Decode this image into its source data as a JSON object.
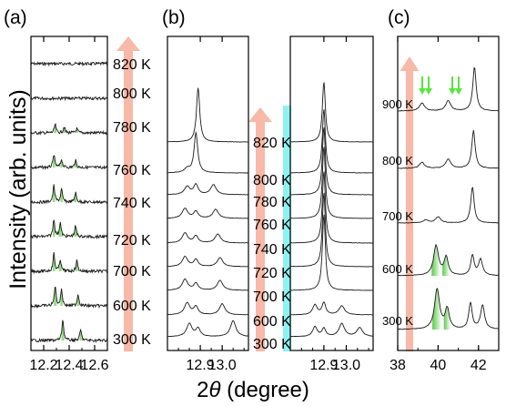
{
  "figure": {
    "ylabel": "Intensity (arb. units)",
    "xlabel_prefix": "2",
    "xlabel_theta": "θ",
    "xlabel_suffix": " (degree)"
  },
  "colors": {
    "arrow": "#f7b9a8",
    "cyan_bar": "#8ef2f2",
    "green_fill": "#7ed66a",
    "green_arrow": "#55e63c",
    "trace": "#1a1a1a"
  },
  "chart_data": [
    {
      "panel": "(a)",
      "type": "line",
      "xlim": [
        12.1,
        12.7
      ],
      "xticks": [
        12.2,
        12.4,
        12.6
      ],
      "tick_labels": [
        "12.2",
        "12.4",
        "12.6"
      ],
      "series": [
        {
          "name": "820 K",
          "peaks": []
        },
        {
          "name": "800 K",
          "peaks": []
        },
        {
          "name": "780 K",
          "peaks": [
            {
              "x": 12.29,
              "h": 0.35
            },
            {
              "x": 12.36,
              "h": 0.25
            },
            {
              "x": 12.46,
              "h": 0.18
            }
          ]
        },
        {
          "name": "760 K",
          "peaks": [
            {
              "x": 12.28,
              "h": 0.55
            },
            {
              "x": 12.34,
              "h": 0.35
            },
            {
              "x": 12.45,
              "h": 0.3
            }
          ]
        },
        {
          "name": "740 K",
          "peaks": [
            {
              "x": 12.28,
              "h": 0.7
            },
            {
              "x": 12.34,
              "h": 0.55
            },
            {
              "x": 12.45,
              "h": 0.4
            }
          ]
        },
        {
          "name": "720 K",
          "peaks": [
            {
              "x": 12.28,
              "h": 0.75
            },
            {
              "x": 12.33,
              "h": 0.6
            },
            {
              "x": 12.45,
              "h": 0.45
            }
          ]
        },
        {
          "name": "700 K",
          "peaks": [
            {
              "x": 12.28,
              "h": 0.75
            },
            {
              "x": 12.33,
              "h": 0.5
            },
            {
              "x": 12.46,
              "h": 0.45
            }
          ]
        },
        {
          "name": "600 K",
          "peaks": [
            {
              "x": 12.29,
              "h": 0.85
            },
            {
              "x": 12.34,
              "h": 0.7
            },
            {
              "x": 12.47,
              "h": 0.5
            }
          ]
        },
        {
          "name": "300 K",
          "peaks": [
            {
              "x": 12.35,
              "h": 0.9
            },
            {
              "x": 12.49,
              "h": 0.45
            }
          ]
        }
      ]
    },
    {
      "panel": "(b)",
      "type": "line",
      "xlim": [
        12.75,
        13.12
      ],
      "xticks": [
        12.9,
        13.0
      ],
      "tick_labels": [
        "12.9",
        "13.0"
      ],
      "series": [
        {
          "name": "820 K",
          "peaks": [
            {
              "x": 12.89,
              "h": 2.7,
              "w": 0.009
            }
          ]
        },
        {
          "name": "800 K",
          "peaks": [
            {
              "x": 12.88,
              "h": 2.0,
              "w": 0.01
            },
            {
              "x": 12.84,
              "h": 0.2,
              "w": 0.015
            }
          ]
        },
        {
          "name": "780 K",
          "peaks": [
            {
              "x": 12.84,
              "h": 0.4,
              "w": 0.015
            },
            {
              "x": 12.88,
              "h": 0.5,
              "w": 0.012
            },
            {
              "x": 12.96,
              "h": 0.5,
              "w": 0.015
            }
          ]
        },
        {
          "name": "760 K",
          "peaks": [
            {
              "x": 12.83,
              "h": 0.5,
              "w": 0.015
            },
            {
              "x": 12.88,
              "h": 0.35,
              "w": 0.012
            },
            {
              "x": 12.97,
              "h": 0.45,
              "w": 0.015
            }
          ]
        },
        {
          "name": "740 K",
          "peaks": [
            {
              "x": 12.83,
              "h": 0.5,
              "w": 0.015
            },
            {
              "x": 12.88,
              "h": 0.35,
              "w": 0.012
            },
            {
              "x": 12.98,
              "h": 0.45,
              "w": 0.015
            }
          ]
        },
        {
          "name": "720 K",
          "peaks": [
            {
              "x": 12.83,
              "h": 0.5,
              "w": 0.015
            },
            {
              "x": 12.88,
              "h": 0.35,
              "w": 0.012
            },
            {
              "x": 12.99,
              "h": 0.45,
              "w": 0.015
            }
          ]
        },
        {
          "name": "700 K",
          "peaks": [
            {
              "x": 12.83,
              "h": 0.55,
              "w": 0.015
            },
            {
              "x": 12.88,
              "h": 0.35,
              "w": 0.012
            },
            {
              "x": 12.99,
              "h": 0.5,
              "w": 0.015
            }
          ]
        },
        {
          "name": "600 K",
          "peaks": [
            {
              "x": 12.84,
              "h": 0.6,
              "w": 0.015
            },
            {
              "x": 12.88,
              "h": 0.4,
              "w": 0.012
            },
            {
              "x": 13.0,
              "h": 0.55,
              "w": 0.015
            }
          ]
        },
        {
          "name": "300 K",
          "peaks": [
            {
              "x": 12.85,
              "h": 0.65,
              "w": 0.015
            },
            {
              "x": 12.89,
              "h": 0.4,
              "w": 0.012
            },
            {
              "x": 13.05,
              "h": 0.8,
              "w": 0.015
            }
          ]
        }
      ]
    },
    {
      "panel": "(b-right)",
      "type": "line",
      "xlim": [
        12.75,
        13.12
      ],
      "xticks": [
        12.9,
        13.0
      ],
      "tick_labels": [
        "12.9",
        "13.0"
      ],
      "series": [
        {
          "name": "820 K",
          "peaks": [
            {
              "x": 12.9,
              "h": 3.0,
              "w": 0.008
            }
          ]
        },
        {
          "name": "800 K",
          "peaks": [
            {
              "x": 12.9,
              "h": 3.2,
              "w": 0.008
            }
          ]
        },
        {
          "name": "780 K",
          "peaks": [
            {
              "x": 12.9,
              "h": 3.4,
              "w": 0.008
            }
          ]
        },
        {
          "name": "760 K",
          "peaks": [
            {
              "x": 12.9,
              "h": 3.6,
              "w": 0.008
            }
          ]
        },
        {
          "name": "740 K",
          "peaks": [
            {
              "x": 12.9,
              "h": 3.6,
              "w": 0.008
            }
          ]
        },
        {
          "name": "720 K",
          "peaks": [
            {
              "x": 12.9,
              "h": 3.7,
              "w": 0.008
            }
          ]
        },
        {
          "name": "700 K",
          "peaks": [
            {
              "x": 12.9,
              "h": 3.8,
              "w": 0.008
            }
          ]
        },
        {
          "name": "600 K",
          "peaks": [
            {
              "x": 12.86,
              "h": 0.5,
              "w": 0.012
            },
            {
              "x": 12.9,
              "h": 0.6,
              "w": 0.01
            },
            {
              "x": 12.98,
              "h": 0.45,
              "w": 0.015
            }
          ]
        },
        {
          "name": "300 K",
          "peaks": [
            {
              "x": 12.86,
              "h": 0.5,
              "w": 0.012
            },
            {
              "x": 12.9,
              "h": 0.4,
              "w": 0.01
            },
            {
              "x": 12.98,
              "h": 0.65,
              "w": 0.015
            },
            {
              "x": 13.06,
              "h": 0.45,
              "w": 0.015
            }
          ]
        }
      ]
    },
    {
      "panel": "(c)",
      "type": "line",
      "xlim": [
        38,
        43
      ],
      "xticks": [
        38,
        40,
        42
      ],
      "tick_labels": [
        "38",
        "40",
        "42"
      ],
      "series": [
        {
          "name": "900 K",
          "peaks": [
            {
              "x": 39.2,
              "h": 0.4,
              "w": 0.15
            },
            {
              "x": 40.5,
              "h": 0.5,
              "w": 0.15
            },
            {
              "x": 41.8,
              "h": 2.2,
              "w": 0.1
            }
          ]
        },
        {
          "name": "800 K",
          "peaks": [
            {
              "x": 39.2,
              "h": 0.3,
              "w": 0.15
            },
            {
              "x": 40.5,
              "h": 0.45,
              "w": 0.15
            },
            {
              "x": 41.75,
              "h": 1.9,
              "w": 0.1
            }
          ]
        },
        {
          "name": "700 K",
          "peaks": [
            {
              "x": 39.4,
              "h": 0.15,
              "w": 0.15
            },
            {
              "x": 40.0,
              "h": 0.3,
              "w": 0.15
            },
            {
              "x": 41.7,
              "h": 1.8,
              "w": 0.1
            }
          ]
        },
        {
          "name": "600 K",
          "peaks": [
            {
              "x": 39.9,
              "h": 1.5,
              "w": 0.15
            },
            {
              "x": 40.4,
              "h": 0.9,
              "w": 0.12
            },
            {
              "x": 41.7,
              "h": 1.0,
              "w": 0.1
            },
            {
              "x": 42.1,
              "h": 0.8,
              "w": 0.12
            }
          ]
        },
        {
          "name": "300 K",
          "peaks": [
            {
              "x": 39.95,
              "h": 2.0,
              "w": 0.15
            },
            {
              "x": 40.45,
              "h": 1.0,
              "w": 0.12
            },
            {
              "x": 41.6,
              "h": 1.3,
              "w": 0.1
            },
            {
              "x": 42.2,
              "h": 1.2,
              "w": 0.12
            }
          ]
        }
      ]
    }
  ]
}
